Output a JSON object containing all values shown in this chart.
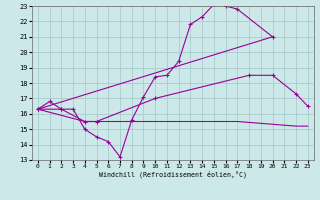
{
  "bg_color": "#cce8e8",
  "line_color": "#990099",
  "grid_color": "#aacccc",
  "xlim": [
    -0.5,
    23.5
  ],
  "ylim": [
    13,
    23
  ],
  "xticks": [
    0,
    1,
    2,
    3,
    4,
    5,
    6,
    7,
    8,
    9,
    10,
    11,
    12,
    13,
    14,
    15,
    16,
    17,
    18,
    19,
    20,
    21,
    22,
    23
  ],
  "yticks": [
    13,
    14,
    15,
    16,
    17,
    18,
    19,
    20,
    21,
    22,
    23
  ],
  "xlabel": "Windchill (Refroidissement éolien,°C)",
  "curves": [
    {
      "x": [
        0,
        1,
        2,
        3,
        4,
        5,
        6,
        7,
        8,
        9,
        10,
        11,
        12,
        13,
        14,
        15,
        16,
        17,
        20
      ],
      "y": [
        16.3,
        16.8,
        16.3,
        16.3,
        15.0,
        14.5,
        14.2,
        13.2,
        15.6,
        17.1,
        18.4,
        18.5,
        19.4,
        21.8,
        22.3,
        23.1,
        23.0,
        22.8,
        21.0
      ],
      "marker": true
    },
    {
      "x": [
        0,
        20
      ],
      "y": [
        16.3,
        21.0
      ],
      "marker": false
    },
    {
      "x": [
        0,
        2,
        4,
        5,
        10,
        18,
        20,
        22,
        23
      ],
      "y": [
        16.3,
        16.3,
        15.5,
        15.5,
        17.0,
        18.5,
        18.5,
        17.3,
        16.5
      ],
      "marker": true
    },
    {
      "x": [
        0,
        4,
        5,
        8,
        9,
        10,
        11,
        12,
        13,
        14,
        15,
        16,
        17,
        22,
        23
      ],
      "y": [
        16.3,
        15.5,
        15.5,
        15.5,
        15.5,
        15.5,
        15.5,
        15.5,
        15.5,
        15.5,
        15.5,
        15.5,
        15.5,
        15.2,
        15.2
      ],
      "marker": false
    }
  ]
}
